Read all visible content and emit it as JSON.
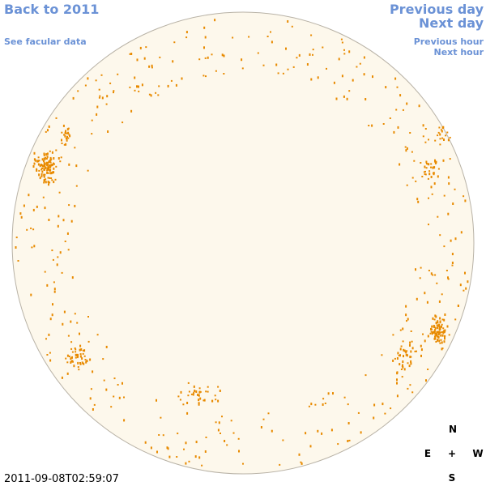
{
  "nav": {
    "back": "Back to 2011",
    "facular": "See facular data",
    "previous_day": "Previous day",
    "next_day": "Next day",
    "previous_hour": "Previous hour",
    "next_hour": "Next hour"
  },
  "timestamp": "2011-09-08T02:59:07",
  "compass": {
    "north": "N",
    "east": "E",
    "center": "+",
    "west": "W",
    "south": "S"
  }
}
